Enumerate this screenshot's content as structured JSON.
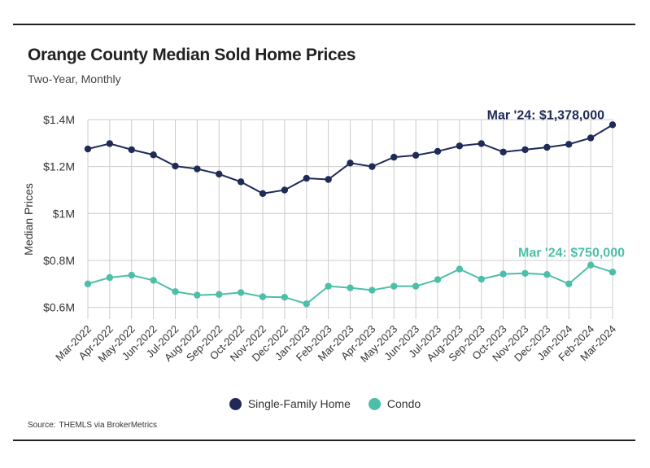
{
  "header": {
    "title": "Orange County Median Sold Home Prices",
    "subtitle": "Two-Year, Monthly"
  },
  "source": {
    "label": "Source:",
    "text": "THEMLS via BrokerMetrics"
  },
  "colors": {
    "single_family": "#1f2a57",
    "condo": "#4dbfa9",
    "grid": "#cccccc",
    "text": "#333333"
  },
  "chart_data": {
    "type": "line",
    "title": "Orange County Median Sold Home Prices",
    "subtitle": "Two-Year, Monthly",
    "xlabel": "",
    "ylabel": "Median Prices",
    "ylim": [
      550000,
      1400000
    ],
    "y_ticks": [
      {
        "value": 600000,
        "label": "$0.6M"
      },
      {
        "value": 800000,
        "label": "$0.8M"
      },
      {
        "value": 1000000,
        "label": "$1M"
      },
      {
        "value": 1200000,
        "label": "$1.2M"
      },
      {
        "value": 1400000,
        "label": "$1.4M"
      }
    ],
    "grid": true,
    "legend": "bottom",
    "categories": [
      "Mar-2022",
      "Apr-2022",
      "May-2022",
      "Jun-2022",
      "Jul-2022",
      "Aug-2022",
      "Sep-2022",
      "Oct-2022",
      "Nov-2022",
      "Dec-2022",
      "Jan-2023",
      "Feb-2023",
      "Mar-2023",
      "Apr-2023",
      "May-2023",
      "Jun-2023",
      "Jul-2023",
      "Aug-2023",
      "Sep-2023",
      "Oct-2023",
      "Nov-2023",
      "Dec-2023",
      "Jan-2024",
      "Feb-2024",
      "Mar-2024"
    ],
    "series": [
      {
        "name": "Single-Family Home",
        "color": "#1f2a57",
        "values": [
          1275000,
          1298000,
          1272000,
          1250000,
          1202000,
          1190000,
          1168000,
          1135000,
          1085000,
          1100000,
          1150000,
          1145000,
          1215000,
          1200000,
          1240000,
          1248000,
          1265000,
          1288000,
          1298000,
          1262000,
          1272000,
          1282000,
          1295000,
          1322000,
          1378000
        ],
        "annotation": "Mar '24: $1,378,000"
      },
      {
        "name": "Condo",
        "color": "#4dbfa9",
        "values": [
          700000,
          727000,
          737000,
          715000,
          667000,
          652000,
          655000,
          663000,
          645000,
          643000,
          615000,
          690000,
          683000,
          673000,
          690000,
          690000,
          718000,
          763000,
          720000,
          742000,
          745000,
          740000,
          700000,
          780000,
          750000
        ],
        "annotation": "Mar '24: $750,000"
      }
    ]
  }
}
